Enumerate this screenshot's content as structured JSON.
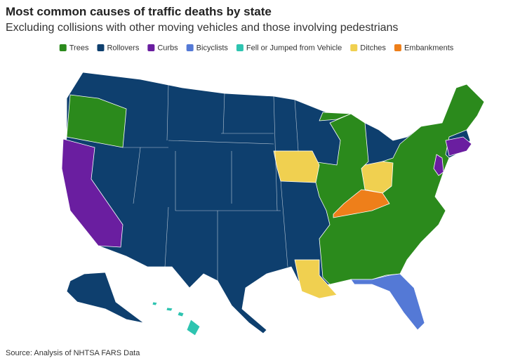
{
  "header": {
    "title": "Most common causes of traffic deaths by state",
    "subtitle": "Excluding collisions with other moving vehicles and those involving pedestrians"
  },
  "legend": [
    {
      "label": "Trees",
      "color": "#2b8a1c"
    },
    {
      "label": "Rollovers",
      "color": "#0e3f6e"
    },
    {
      "label": "Curbs",
      "color": "#6a1ea0"
    },
    {
      "label": "Bicyclists",
      "color": "#5479d6"
    },
    {
      "label": "Fell or Jumped from Vehicle",
      "color": "#2ec4b0"
    },
    {
      "label": "Ditches",
      "color": "#f0d050"
    },
    {
      "label": "Embankments",
      "color": "#ee7f1a"
    }
  ],
  "source": "Source: Analysis of NHTSA FARS Data"
}
